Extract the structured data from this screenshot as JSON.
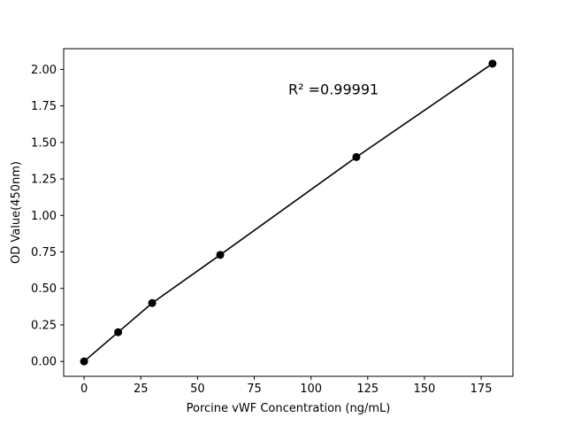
{
  "figure": {
    "background": "#ffffff",
    "foreground": "#000000"
  },
  "chart_data": {
    "type": "scatter",
    "title": "",
    "xlabel": "Porcine vWF Concentration (ng/mL)",
    "ylabel": "OD Value(450nm)",
    "annotation": {
      "text": "R² =0.99991",
      "x": 90,
      "y": 1.83
    },
    "x": [
      0,
      15,
      30,
      60,
      120,
      180
    ],
    "y": [
      0.0,
      0.2,
      0.4,
      0.73,
      1.4,
      2.04
    ],
    "xlim": [
      -9,
      189
    ],
    "ylim": [
      -0.102,
      2.142
    ],
    "xticks": {
      "values": [
        0,
        25,
        50,
        75,
        100,
        125,
        150,
        175
      ],
      "labels": [
        "0",
        "25",
        "50",
        "75",
        "100",
        "125",
        "150",
        "175"
      ]
    },
    "yticks": {
      "values": [
        0,
        0.25,
        0.5,
        0.75,
        1.0,
        1.25,
        1.5,
        1.75,
        2.0
      ],
      "labels": [
        "0.00",
        "0.25",
        "0.50",
        "0.75",
        "1.00",
        "1.25",
        "1.50",
        "1.75",
        "2.00"
      ]
    },
    "line_color": "#000000",
    "marker_color": "#000000",
    "marker_radius": 4.5,
    "line_width": 1.6,
    "grid": false,
    "legend": null
  }
}
